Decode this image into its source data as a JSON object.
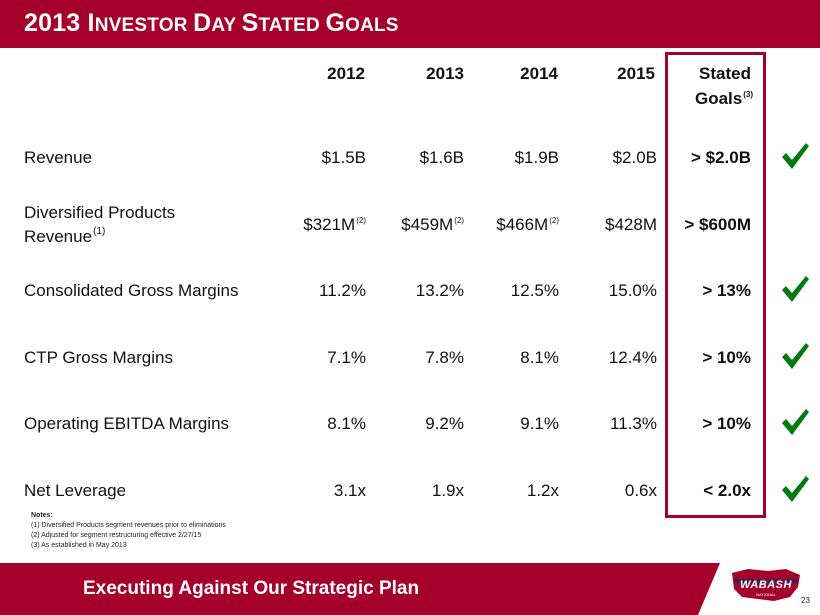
{
  "title": {
    "p1": "2013 I",
    "p2": "NVESTOR ",
    "p3": "D",
    "p4": "AY ",
    "p5": "S",
    "p6": "TATED ",
    "p7": "G",
    "p8": "OALS"
  },
  "table": {
    "headers": [
      "2012",
      "2013",
      "2014",
      "2015"
    ],
    "goal_header": {
      "line1": "Stated",
      "line2": "Goals",
      "note": "(3)"
    },
    "rows": [
      {
        "label": "Revenue",
        "values": [
          "$1.5B",
          "$1.6B",
          "$1.9B",
          "$2.0B"
        ],
        "goal": "> $2.0B",
        "achieved": true
      },
      {
        "label_line1": "Diversified Products",
        "label_line2": "Revenue",
        "label_note": "(1)",
        "values": [
          "$321M",
          "$459M",
          "$466M",
          "$428M"
        ],
        "value_notes": [
          "(2)",
          "(2)",
          "(2)",
          ""
        ],
        "goal": "> $600M",
        "achieved": false
      },
      {
        "label": "Consolidated Gross Margins",
        "values": [
          "11.2%",
          "13.2%",
          "12.5%",
          "15.0%"
        ],
        "goal": "> 13%",
        "achieved": true
      },
      {
        "label": "CTP Gross Margins",
        "values": [
          "7.1%",
          "7.8%",
          "8.1%",
          "12.4%"
        ],
        "goal": "> 10%",
        "achieved": true
      },
      {
        "label": "Operating EBITDA Margins",
        "values": [
          "8.1%",
          "9.2%",
          "9.1%",
          "11.3%"
        ],
        "goal": "> 10%",
        "achieved": true
      },
      {
        "label": "Net Leverage",
        "values": [
          "3.1x",
          "1.9x",
          "1.2x",
          "0.6x"
        ],
        "goal": "< 2.0x",
        "achieved": true
      }
    ]
  },
  "notes": {
    "heading": "Notes:",
    "items": [
      "(1)  Diversified Products segment revenues prior to eliminations",
      "(2)  Adjusted for segment restructuring effective 2/27/15",
      "(3)  As established in May 2013"
    ]
  },
  "footer": {
    "tagline": "Executing Against Our Strategic Plan"
  },
  "logo": {
    "name": "WABASH",
    "sub": "NATIONAL"
  },
  "page_number": "23",
  "colors": {
    "brand": "#a4002b",
    "check": "#007a10"
  }
}
